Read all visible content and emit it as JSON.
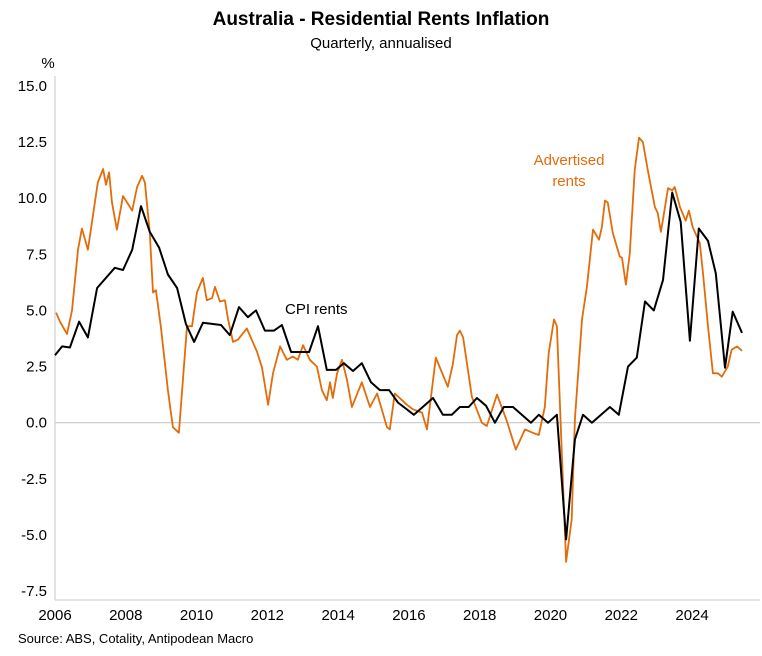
{
  "chart_data": {
    "type": "line",
    "title": "Australia - Residential Rents Inflation",
    "subtitle": "Quarterly, annualised",
    "ylabel": "%",
    "xlabel": "",
    "source": "Source: ABS, Cotality, Antipodean Macro",
    "xlim": [
      2006,
      2025.92
    ],
    "ylim": [
      -7.9,
      15
    ],
    "y_ticks": [
      15.0,
      12.5,
      10.0,
      7.5,
      5.0,
      2.5,
      0.0,
      -2.5,
      -5.0,
      -7.5
    ],
    "y_tick_labels": [
      "15.0",
      "12.5",
      "10.0",
      "7.5",
      "5.0",
      "2.5",
      "0.0",
      "-2.5",
      "-5.0",
      "-7.5"
    ],
    "x_ticks": [
      2006,
      2008,
      2010,
      2012,
      2014,
      2016,
      2018,
      2020,
      2022,
      2024
    ],
    "x_tick_labels": [
      "2006",
      "2008",
      "2010",
      "2012",
      "2014",
      "2016",
      "2018",
      "2020",
      "2022",
      "2024"
    ],
    "grid": false,
    "zero_line": true,
    "series": [
      {
        "name": "CPI rents",
        "label": "CPI rents",
        "color": "#000000",
        "points": [
          [
            2006.0,
            3.0
          ],
          [
            2006.2,
            3.4
          ],
          [
            2006.42,
            3.35
          ],
          [
            2006.68,
            4.5
          ],
          [
            2006.93,
            3.8
          ],
          [
            2007.19,
            6.0
          ],
          [
            2007.69,
            6.9
          ],
          [
            2007.92,
            6.8
          ],
          [
            2008.18,
            7.7
          ],
          [
            2008.43,
            9.65
          ],
          [
            2008.68,
            8.5
          ],
          [
            2008.94,
            7.8
          ],
          [
            2009.19,
            6.6
          ],
          [
            2009.45,
            6.0
          ],
          [
            2009.7,
            4.4
          ],
          [
            2009.93,
            3.6
          ],
          [
            2010.18,
            4.45
          ],
          [
            2010.69,
            4.35
          ],
          [
            2010.94,
            3.9
          ],
          [
            2011.2,
            5.15
          ],
          [
            2011.45,
            4.7
          ],
          [
            2011.68,
            5.0
          ],
          [
            2011.93,
            4.1
          ],
          [
            2012.19,
            4.1
          ],
          [
            2012.41,
            4.35
          ],
          [
            2012.67,
            3.15
          ],
          [
            2013.18,
            3.15
          ],
          [
            2013.43,
            4.3
          ],
          [
            2013.68,
            2.35
          ],
          [
            2013.94,
            2.35
          ],
          [
            2014.16,
            2.65
          ],
          [
            2014.42,
            2.3
          ],
          [
            2014.67,
            2.65
          ],
          [
            2014.93,
            1.8
          ],
          [
            2015.18,
            1.45
          ],
          [
            2015.44,
            1.45
          ],
          [
            2015.69,
            0.9
          ],
          [
            2016.14,
            0.35
          ],
          [
            2016.68,
            1.1
          ],
          [
            2016.96,
            0.35
          ],
          [
            2017.21,
            0.35
          ],
          [
            2017.44,
            0.7
          ],
          [
            2017.69,
            0.7
          ],
          [
            2017.92,
            1.1
          ],
          [
            2018.18,
            0.75
          ],
          [
            2018.43,
            0.0
          ],
          [
            2018.68,
            0.7
          ],
          [
            2018.94,
            0.7
          ],
          [
            2019.19,
            0.35
          ],
          [
            2019.45,
            0.0
          ],
          [
            2019.67,
            0.35
          ],
          [
            2019.93,
            0.0
          ],
          [
            2020.18,
            0.35
          ],
          [
            2020.44,
            -5.2
          ],
          [
            2020.69,
            -0.75
          ],
          [
            2020.92,
            0.35
          ],
          [
            2021.17,
            0.0
          ],
          [
            2021.68,
            0.7
          ],
          [
            2021.93,
            0.35
          ],
          [
            2022.19,
            2.5
          ],
          [
            2022.44,
            2.9
          ],
          [
            2022.67,
            5.4
          ],
          [
            2022.92,
            5.0
          ],
          [
            2023.18,
            6.35
          ],
          [
            2023.44,
            10.25
          ],
          [
            2023.68,
            8.95
          ],
          [
            2023.94,
            3.65
          ],
          [
            2024.19,
            8.65
          ],
          [
            2024.45,
            8.1
          ],
          [
            2024.67,
            6.65
          ],
          [
            2024.93,
            2.45
          ],
          [
            2025.15,
            4.95
          ],
          [
            2025.41,
            4.0
          ]
        ]
      },
      {
        "name": "Advertised rents",
        "label_lines": [
          "Advertised",
          "rents"
        ],
        "color": "#E36C0A",
        "points": [
          [
            2006.03,
            4.9
          ],
          [
            2006.14,
            4.5
          ],
          [
            2006.34,
            3.95
          ],
          [
            2006.48,
            5.0
          ],
          [
            2006.65,
            7.7
          ],
          [
            2006.76,
            8.65
          ],
          [
            2006.93,
            7.7
          ],
          [
            2007.21,
            10.7
          ],
          [
            2007.36,
            11.3
          ],
          [
            2007.44,
            10.6
          ],
          [
            2007.53,
            11.15
          ],
          [
            2007.61,
            9.8
          ],
          [
            2007.75,
            8.6
          ],
          [
            2007.92,
            10.1
          ],
          [
            2008.18,
            9.45
          ],
          [
            2008.32,
            10.5
          ],
          [
            2008.46,
            11.0
          ],
          [
            2008.54,
            10.7
          ],
          [
            2008.68,
            8.45
          ],
          [
            2008.77,
            5.8
          ],
          [
            2008.85,
            5.9
          ],
          [
            2008.99,
            4.3
          ],
          [
            2009.19,
            1.45
          ],
          [
            2009.33,
            -0.2
          ],
          [
            2009.5,
            -0.45
          ],
          [
            2009.73,
            4.3
          ],
          [
            2009.87,
            4.3
          ],
          [
            2010.01,
            5.8
          ],
          [
            2010.18,
            6.45
          ],
          [
            2010.29,
            5.45
          ],
          [
            2010.44,
            5.55
          ],
          [
            2010.52,
            6.05
          ],
          [
            2010.66,
            5.4
          ],
          [
            2010.8,
            5.45
          ],
          [
            2010.89,
            4.6
          ],
          [
            2011.03,
            3.6
          ],
          [
            2011.17,
            3.7
          ],
          [
            2011.42,
            4.2
          ],
          [
            2011.71,
            3.15
          ],
          [
            2011.85,
            2.45
          ],
          [
            2012.02,
            0.8
          ],
          [
            2012.16,
            2.2
          ],
          [
            2012.36,
            3.4
          ],
          [
            2012.55,
            2.8
          ],
          [
            2012.72,
            2.95
          ],
          [
            2012.86,
            2.8
          ],
          [
            2013.01,
            3.45
          ],
          [
            2013.2,
            2.8
          ],
          [
            2013.4,
            2.5
          ],
          [
            2013.54,
            1.45
          ],
          [
            2013.68,
            1.0
          ],
          [
            2013.77,
            1.8
          ],
          [
            2013.85,
            1.1
          ],
          [
            2013.97,
            2.2
          ],
          [
            2014.11,
            2.8
          ],
          [
            2014.25,
            1.9
          ],
          [
            2014.39,
            0.7
          ],
          [
            2014.67,
            1.8
          ],
          [
            2014.9,
            0.7
          ],
          [
            2015.1,
            1.3
          ],
          [
            2015.38,
            -0.2
          ],
          [
            2015.46,
            -0.3
          ],
          [
            2015.6,
            1.3
          ],
          [
            2015.94,
            0.8
          ],
          [
            2016.11,
            0.6
          ],
          [
            2016.37,
            0.45
          ],
          [
            2016.51,
            -0.3
          ],
          [
            2016.76,
            2.9
          ],
          [
            2017.1,
            1.6
          ],
          [
            2017.24,
            2.6
          ],
          [
            2017.36,
            3.9
          ],
          [
            2017.44,
            4.1
          ],
          [
            2017.53,
            3.8
          ],
          [
            2017.78,
            1.15
          ],
          [
            2018.06,
            0.0
          ],
          [
            2018.2,
            -0.15
          ],
          [
            2018.49,
            1.25
          ],
          [
            2018.77,
            0.05
          ],
          [
            2019.02,
            -1.2
          ],
          [
            2019.28,
            -0.3
          ],
          [
            2019.5,
            -0.45
          ],
          [
            2019.67,
            -0.55
          ],
          [
            2019.84,
            0.7
          ],
          [
            2019.95,
            3.1
          ],
          [
            2020.1,
            4.6
          ],
          [
            2020.18,
            4.3
          ],
          [
            2020.32,
            -1.35
          ],
          [
            2020.44,
            -6.2
          ],
          [
            2020.6,
            -4.3
          ],
          [
            2020.69,
            0.15
          ],
          [
            2020.89,
            4.6
          ],
          [
            2021.03,
            6.05
          ],
          [
            2021.2,
            8.6
          ],
          [
            2021.37,
            8.15
          ],
          [
            2021.45,
            8.7
          ],
          [
            2021.54,
            9.9
          ],
          [
            2021.62,
            9.8
          ],
          [
            2021.76,
            8.45
          ],
          [
            2021.96,
            7.4
          ],
          [
            2022.02,
            7.35
          ],
          [
            2022.13,
            6.15
          ],
          [
            2022.24,
            7.55
          ],
          [
            2022.38,
            11.25
          ],
          [
            2022.5,
            12.7
          ],
          [
            2022.61,
            12.5
          ],
          [
            2022.75,
            11.25
          ],
          [
            2022.95,
            9.6
          ],
          [
            2023.03,
            9.35
          ],
          [
            2023.12,
            8.5
          ],
          [
            2023.2,
            9.25
          ],
          [
            2023.32,
            10.45
          ],
          [
            2023.44,
            10.35
          ],
          [
            2023.51,
            10.5
          ],
          [
            2023.66,
            9.6
          ],
          [
            2023.82,
            9.0
          ],
          [
            2023.91,
            9.45
          ],
          [
            2024.02,
            8.7
          ],
          [
            2024.22,
            8.0
          ],
          [
            2024.31,
            6.65
          ],
          [
            2024.45,
            4.3
          ],
          [
            2024.59,
            2.2
          ],
          [
            2024.73,
            2.2
          ],
          [
            2024.84,
            2.05
          ],
          [
            2025.01,
            2.5
          ],
          [
            2025.12,
            3.25
          ],
          [
            2025.27,
            3.4
          ],
          [
            2025.41,
            3.2
          ]
        ]
      }
    ]
  }
}
